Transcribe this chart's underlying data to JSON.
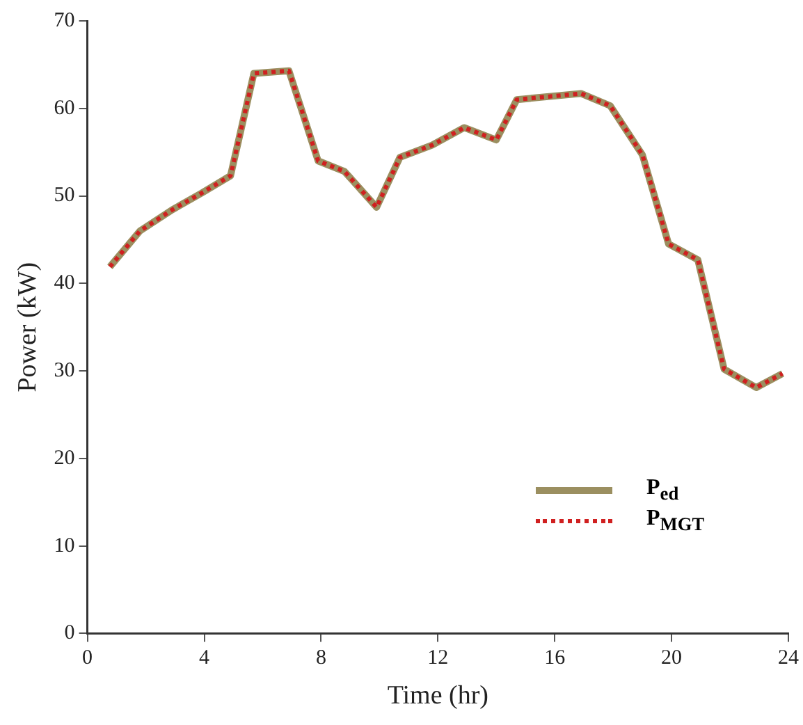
{
  "chart_data": {
    "type": "line",
    "xlabel": "Time (hr)",
    "ylabel": "Power (kW)",
    "x": [
      0.77,
      1.8,
      2.9,
      3.9,
      4.9,
      5.7,
      6.9,
      7.9,
      8.8,
      9.9,
      10.7,
      11.8,
      12.9,
      14,
      14.7,
      16.9,
      17.9,
      19,
      19.9,
      20.9,
      21.8,
      22.9,
      23.8
    ],
    "series": [
      {
        "name": "P$_{ed}$",
        "color": "#9b8f60",
        "line_style": "solid",
        "values": [
          41.9,
          46,
          48.4,
          50.3,
          52.3,
          64,
          64.3,
          54,
          52.8,
          48.7,
          54.4,
          55.8,
          57.8,
          56.4,
          61,
          61.7,
          60.3,
          54.7,
          44.5,
          42.7,
          30.2,
          28.1,
          29.7
        ]
      },
      {
        "name": "P$_{MGT}$",
        "color": "#d02020",
        "line_style": "dotted",
        "values": [
          41.9,
          46,
          48.4,
          50.3,
          52.3,
          64,
          64.3,
          54,
          52.8,
          48.7,
          54.4,
          55.8,
          57.8,
          56.4,
          61,
          61.7,
          60.3,
          54.7,
          44.5,
          42.7,
          30.2,
          28.1,
          29.7
        ]
      }
    ],
    "xlim": [
      0,
      24
    ],
    "xticks": [
      0,
      4,
      8,
      12,
      16,
      20,
      24
    ],
    "ylim": [
      0,
      70
    ],
    "yticks": [
      0,
      10,
      20,
      30,
      40,
      50,
      60,
      70
    ],
    "grid": false,
    "legend": "bottom right",
    "marker": "none"
  }
}
